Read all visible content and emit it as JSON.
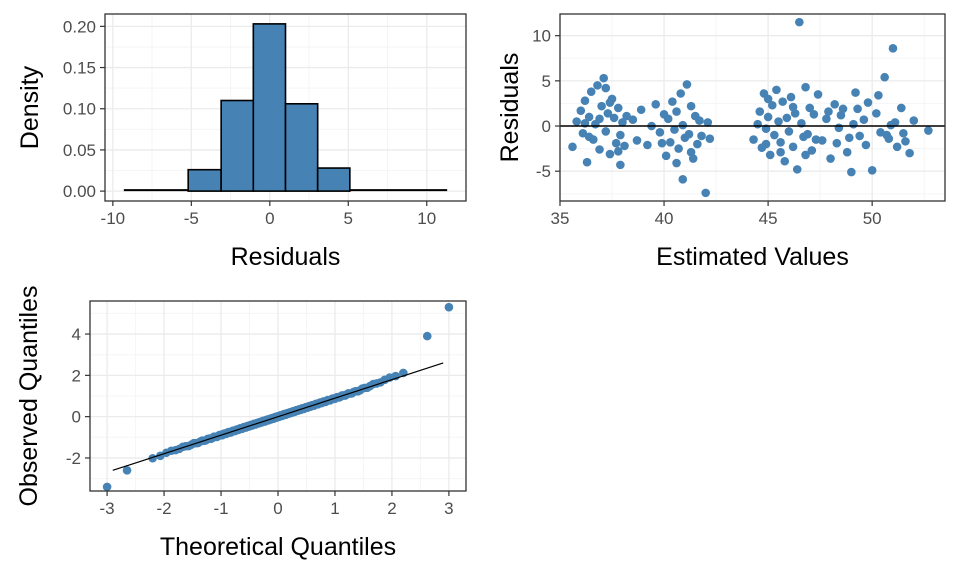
{
  "colors": {
    "accent": "#4682B4",
    "grid_major": "#ebebeb",
    "grid_minor": "#f5f5f5",
    "panel_border": "#333333",
    "tick_text": "#4d4d4d"
  },
  "chart_data": [
    {
      "type": "bar",
      "xlabel": "Residuals",
      "ylabel": "Density",
      "xlim": [
        -10.5,
        12.5
      ],
      "ylim": [
        -0.012,
        0.215
      ],
      "xticks": [
        -10,
        -5,
        0,
        5,
        10
      ],
      "yticks": [
        0.0,
        0.05,
        0.1,
        0.15,
        0.2
      ],
      "ytick_labels": [
        "0.00",
        "0.05",
        "0.10",
        "0.15",
        "0.20"
      ],
      "grid": true,
      "bins": [
        {
          "x0": -9.3,
          "x1": -5.2,
          "density": 0.001
        },
        {
          "x0": -5.2,
          "x1": -3.1,
          "density": 0.026
        },
        {
          "x0": -3.1,
          "x1": -1.05,
          "density": 0.11
        },
        {
          "x0": -1.05,
          "x1": 1.0,
          "density": 0.203
        },
        {
          "x0": 1.0,
          "x1": 3.05,
          "density": 0.106
        },
        {
          "x0": 3.05,
          "x1": 5.1,
          "density": 0.028
        },
        {
          "x0": 5.1,
          "x1": 11.3,
          "density": 0.001
        }
      ]
    },
    {
      "type": "scatter",
      "xlabel": "Estimated Values",
      "ylabel": "Residuals",
      "xlim": [
        35.0,
        53.5
      ],
      "ylim": [
        -8.3,
        12.4
      ],
      "xticks": [
        35,
        40,
        45,
        50
      ],
      "yticks": [
        -5,
        0,
        5,
        10
      ],
      "grid": true,
      "reference_line_y": 0,
      "points": [
        [
          35.6,
          -2.3
        ],
        [
          35.8,
          0.5
        ],
        [
          36.0,
          1.7
        ],
        [
          36.1,
          -0.8
        ],
        [
          36.2,
          2.8
        ],
        [
          36.3,
          -4.0
        ],
        [
          36.4,
          1.0
        ],
        [
          36.5,
          3.8
        ],
        [
          36.6,
          -1.5
        ],
        [
          36.7,
          0.2
        ],
        [
          36.8,
          4.5
        ],
        [
          36.9,
          -2.6
        ],
        [
          37.0,
          2.2
        ],
        [
          37.1,
          5.3
        ],
        [
          37.2,
          -0.6
        ],
        [
          37.3,
          1.4
        ],
        [
          37.4,
          -3.1
        ],
        [
          37.5,
          3.0
        ],
        [
          37.6,
          0.9
        ],
        [
          37.7,
          -1.9
        ],
        [
          37.8,
          2.0
        ],
        [
          37.9,
          -4.3
        ],
        [
          38.0,
          0.4
        ],
        [
          38.1,
          -2.2
        ],
        [
          38.2,
          1.1
        ],
        [
          36.4,
          -1.2
        ],
        [
          36.9,
          0.8
        ],
        [
          37.4,
          2.6
        ],
        [
          37.9,
          -1.0
        ],
        [
          36.2,
          0.3
        ],
        [
          37.2,
          4.2
        ],
        [
          37.8,
          -2.8
        ],
        [
          38.5,
          0.7
        ],
        [
          38.7,
          -1.6
        ],
        [
          38.9,
          1.8
        ],
        [
          39.2,
          -2.1
        ],
        [
          39.4,
          0.0
        ],
        [
          39.6,
          2.4
        ],
        [
          39.8,
          -0.7
        ],
        [
          40.0,
          1.3
        ],
        [
          40.1,
          -3.3
        ],
        [
          40.2,
          0.8
        ],
        [
          40.3,
          -1.8
        ],
        [
          40.4,
          2.7
        ],
        [
          40.5,
          -0.4
        ],
        [
          40.6,
          1.6
        ],
        [
          40.7,
          -2.5
        ],
        [
          40.8,
          3.6
        ],
        [
          40.9,
          0.1
        ],
        [
          41.0,
          -1.3
        ],
        [
          41.1,
          4.6
        ],
        [
          41.2,
          -0.9
        ],
        [
          41.3,
          2.2
        ],
        [
          41.4,
          -3.6
        ],
        [
          41.5,
          1.1
        ],
        [
          41.6,
          -2.0
        ],
        [
          41.7,
          0.6
        ],
        [
          41.8,
          -1.1
        ],
        [
          42.0,
          -7.4
        ],
        [
          40.9,
          -5.9
        ],
        [
          42.1,
          0.4
        ],
        [
          42.2,
          -1.4
        ],
        [
          40.6,
          -4.1
        ],
        [
          41.3,
          -2.9
        ],
        [
          39.9,
          -1.9
        ],
        [
          44.3,
          -1.5
        ],
        [
          44.5,
          0.2
        ],
        [
          44.6,
          1.6
        ],
        [
          44.7,
          -2.4
        ],
        [
          44.8,
          3.6
        ],
        [
          44.9,
          -0.3
        ],
        [
          45.0,
          1.0
        ],
        [
          45.1,
          -3.2
        ],
        [
          45.2,
          2.3
        ],
        [
          45.3,
          -1.0
        ],
        [
          45.4,
          4.0
        ],
        [
          45.5,
          0.5
        ],
        [
          45.6,
          -1.8
        ],
        [
          45.7,
          2.7
        ],
        [
          45.8,
          -3.9
        ],
        [
          45.9,
          0.9
        ],
        [
          46.0,
          -0.6
        ],
        [
          46.1,
          3.2
        ],
        [
          46.2,
          -2.3
        ],
        [
          46.3,
          1.4
        ],
        [
          46.5,
          11.5
        ],
        [
          46.4,
          -4.8
        ],
        [
          46.6,
          0.3
        ],
        [
          46.7,
          -1.2
        ],
        [
          46.8,
          4.3
        ],
        [
          46.9,
          -0.9
        ],
        [
          47.0,
          2.0
        ],
        [
          47.1,
          -2.7
        ],
        [
          47.2,
          1.3
        ],
        [
          47.4,
          3.5
        ],
        [
          47.6,
          -1.6
        ],
        [
          47.8,
          0.8
        ],
        [
          48.0,
          -3.6
        ],
        [
          48.2,
          2.4
        ],
        [
          48.4,
          -0.2
        ],
        [
          48.6,
          1.9
        ],
        [
          48.8,
          -2.9
        ],
        [
          49.0,
          -5.1
        ],
        [
          49.2,
          3.7
        ],
        [
          49.4,
          -1.1
        ],
        [
          49.6,
          0.7
        ],
        [
          49.8,
          2.6
        ],
        [
          50.0,
          -4.9
        ],
        [
          50.2,
          1.4
        ],
        [
          50.4,
          -0.7
        ],
        [
          50.6,
          5.4
        ],
        [
          50.8,
          -1.4
        ],
        [
          51.0,
          8.6
        ],
        [
          51.1,
          0.4
        ],
        [
          51.2,
          -2.3
        ],
        [
          51.4,
          2.0
        ],
        [
          51.6,
          -1.7
        ],
        [
          51.8,
          -3.0
        ],
        [
          52.0,
          0.6
        ],
        [
          52.7,
          -0.5
        ],
        [
          47.3,
          -1.5
        ],
        [
          48.5,
          1.2
        ],
        [
          49.1,
          0.2
        ],
        [
          49.7,
          -2.1
        ],
        [
          50.3,
          3.4
        ],
        [
          50.9,
          0.1
        ],
        [
          51.5,
          -0.8
        ],
        [
          46.2,
          2.1
        ],
        [
          45.6,
          -2.9
        ],
        [
          47.9,
          1.6
        ],
        [
          48.9,
          -1.3
        ],
        [
          50.7,
          -1.0
        ],
        [
          49.3,
          1.9
        ],
        [
          46.8,
          -3.2
        ],
        [
          45.0,
          3.0
        ],
        [
          44.9,
          -2.0
        ],
        [
          48.3,
          -1.9
        ]
      ]
    },
    {
      "type": "scatter",
      "xlabel": "Theoretical Quantiles",
      "ylabel": "Observed Quantiles",
      "xlim": [
        -3.3,
        3.3
      ],
      "ylim": [
        -3.6,
        5.6
      ],
      "xticks": [
        -3,
        -2,
        -1,
        0,
        1,
        2,
        3
      ],
      "yticks": [
        -2,
        0,
        2,
        4
      ],
      "grid": true,
      "reference_line": [
        [
          -2.9,
          -2.6
        ],
        [
          2.9,
          2.6
        ]
      ],
      "outliers": [
        [
          2.62,
          3.9
        ],
        [
          3.0,
          5.3
        ],
        [
          -3.0,
          -3.4
        ],
        [
          -2.65,
          -2.6
        ]
      ]
    }
  ]
}
